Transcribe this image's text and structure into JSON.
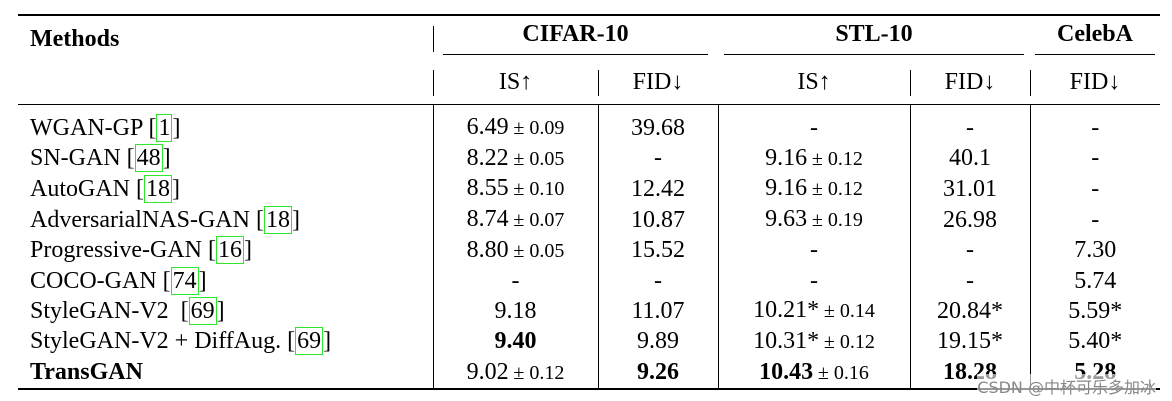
{
  "table": {
    "header": {
      "methods": "Methods",
      "groups": [
        {
          "name": "CIFAR-10",
          "span": 2
        },
        {
          "name": "STL-10",
          "span": 2
        },
        {
          "name": "CelebA",
          "span": 1
        }
      ],
      "metrics": [
        "IS↑",
        "FID↓",
        "IS↑",
        "FID↓",
        "FID↓"
      ]
    },
    "rows": [
      {
        "name": "WGAN-GP ",
        "cite": [
          "[",
          "1",
          "]"
        ],
        "cells": [
          {
            "text": "6.49",
            "sub": "± 0.09"
          },
          {
            "text": "39.68"
          },
          {
            "text": "-"
          },
          {
            "text": "-"
          },
          {
            "text": "-"
          }
        ]
      },
      {
        "name": "SN-GAN ",
        "cite": [
          "[",
          "48",
          "]"
        ],
        "cells": [
          {
            "text": "8.22",
            "sub": "± 0.05"
          },
          {
            "text": "-"
          },
          {
            "text": "9.16",
            "sub": "± 0.12"
          },
          {
            "text": "40.1"
          },
          {
            "text": "-"
          }
        ]
      },
      {
        "name": "AutoGAN ",
        "cite": [
          "[",
          "18",
          "]"
        ],
        "cells": [
          {
            "text": "8.55",
            "sub": "± 0.10"
          },
          {
            "text": "12.42"
          },
          {
            "text": "9.16",
            "sub": "± 0.12"
          },
          {
            "text": "31.01"
          },
          {
            "text": "-"
          }
        ]
      },
      {
        "name": "AdversarialNAS-GAN ",
        "cite": [
          "[",
          "18",
          "]"
        ],
        "cells": [
          {
            "text": "8.74",
            "sub": "± 0.07"
          },
          {
            "text": "10.87"
          },
          {
            "text": "9.63",
            "sub": "± 0.19"
          },
          {
            "text": "26.98"
          },
          {
            "text": "-"
          }
        ]
      },
      {
        "name": "Progressive-GAN ",
        "cite": [
          "[",
          "16",
          "]"
        ],
        "cells": [
          {
            "text": "8.80",
            "sub": "± 0.05"
          },
          {
            "text": "15.52"
          },
          {
            "text": "-"
          },
          {
            "text": "-"
          },
          {
            "text": "7.30"
          }
        ]
      },
      {
        "name": "COCO-GAN ",
        "cite": [
          "[",
          "74",
          "]"
        ],
        "cells": [
          {
            "text": "-"
          },
          {
            "text": "-"
          },
          {
            "text": "-"
          },
          {
            "text": "-"
          },
          {
            "text": "5.74"
          }
        ]
      },
      {
        "name": "StyleGAN-V2  ",
        "cite": [
          "[",
          "69",
          "]"
        ],
        "cells": [
          {
            "text": "9.18"
          },
          {
            "text": "11.07"
          },
          {
            "text": "10.21*",
            "sub": "± 0.14"
          },
          {
            "text": "20.84*"
          },
          {
            "text": "5.59*"
          }
        ]
      },
      {
        "name": "StyleGAN-V2 + DiffAug. ",
        "cite": [
          "[",
          "69",
          "]"
        ],
        "cells": [
          {
            "text": "9.40",
            "bold": true
          },
          {
            "text": "9.89"
          },
          {
            "text": "10.31*",
            "sub": "± 0.12"
          },
          {
            "text": "19.15*"
          },
          {
            "text": "5.40*"
          }
        ]
      },
      {
        "name": "TransGAN",
        "bold": true,
        "cells": [
          {
            "text": "9.02",
            "sub": "± 0.12"
          },
          {
            "text": "9.26",
            "bold": true
          },
          {
            "text": "10.43",
            "sub": "± 0.16",
            "bold": true
          },
          {
            "text": "18.28",
            "bold": true
          },
          {
            "text": "5.28",
            "bold": true
          }
        ]
      }
    ]
  },
  "watermark": "CSDN @中杯可乐多加冰"
}
